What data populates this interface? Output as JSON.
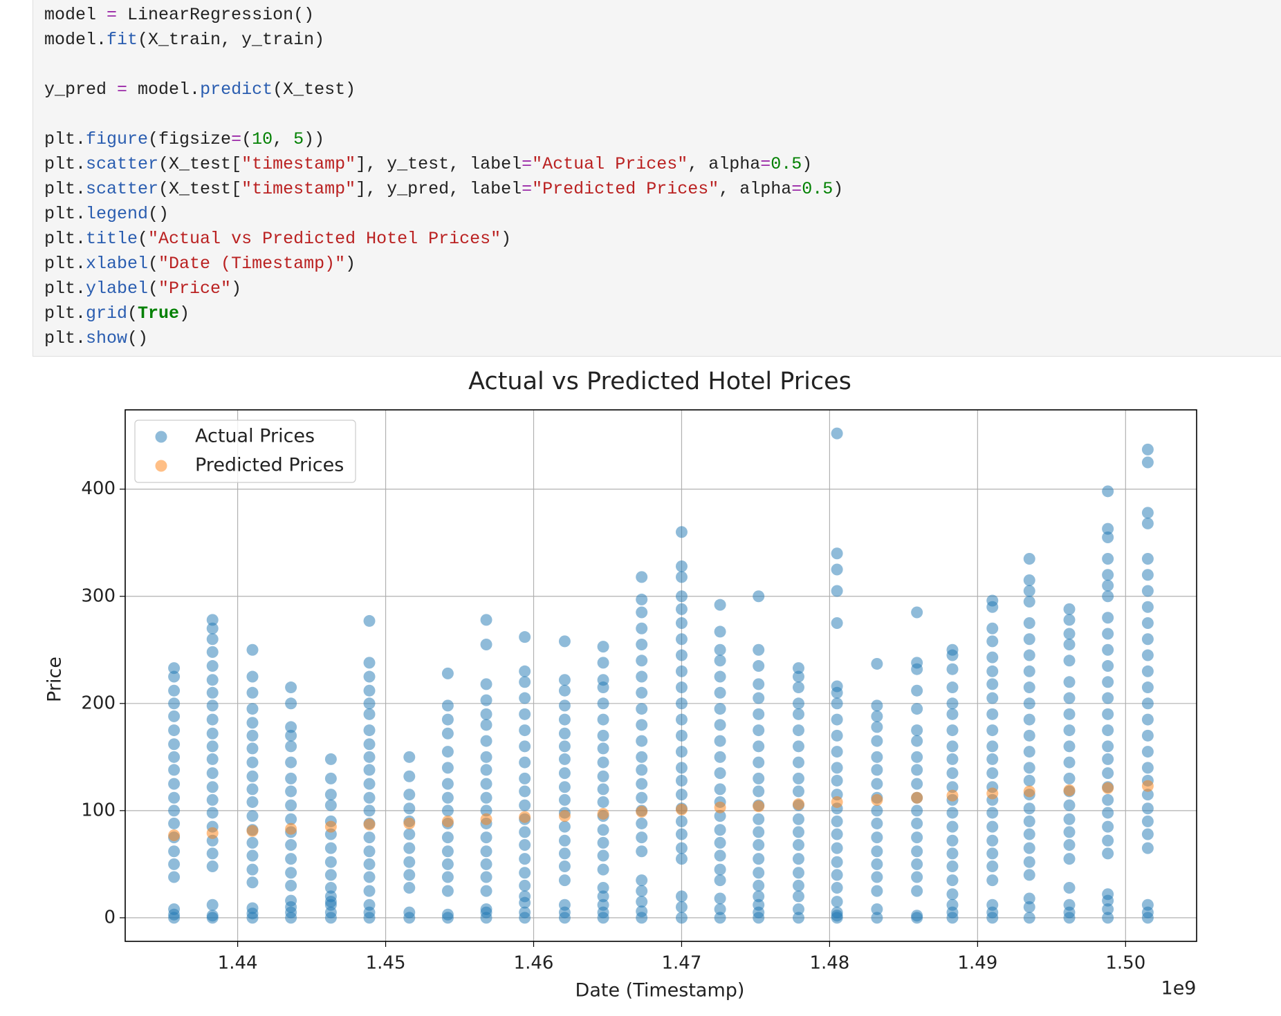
{
  "code": {
    "lines": [
      [
        "model ",
        "=",
        " LinearRegression()"
      ],
      [
        "model.",
        "fit",
        "(X_train, y_train)"
      ],
      [],
      [
        "y_pred ",
        "=",
        " model.",
        "predict",
        "(X_test)"
      ],
      [],
      [
        "plt.",
        "figure",
        "(figsize",
        "=",
        "(",
        "10",
        ", ",
        "5",
        "))"
      ],
      [
        "plt.",
        "scatter",
        "(X_test[",
        "\"timestamp\"",
        "], y_test, label",
        "=",
        "\"Actual Prices\"",
        ", alpha",
        "=",
        "0.5",
        ")"
      ],
      [
        "plt.",
        "scatter",
        "(X_test[",
        "\"timestamp\"",
        "], y_pred, label",
        "=",
        "\"Predicted Prices\"",
        ", alpha",
        "=",
        "0.5",
        ")"
      ],
      [
        "plt.",
        "legend",
        "()"
      ],
      [
        "plt.",
        "title",
        "(",
        "\"Actual vs Predicted Hotel Prices\"",
        ")"
      ],
      [
        "plt.",
        "xlabel",
        "(",
        "\"Date (Timestamp)\"",
        ")"
      ],
      [
        "plt.",
        "ylabel",
        "(",
        "\"Price\"",
        ")"
      ],
      [
        "plt.",
        "grid",
        "(",
        "True",
        ")"
      ],
      [
        "plt.",
        "show",
        "()"
      ]
    ]
  },
  "chart_data": {
    "type": "scatter",
    "title": "Actual vs Predicted Hotel Prices",
    "xlabel": "Date (Timestamp)",
    "ylabel": "Price",
    "x_offset": "1e9",
    "xlim": [
      1.4324,
      1.5048
    ],
    "ylim": [
      -22,
      474
    ],
    "xticks": [
      1.44,
      1.45,
      1.46,
      1.47,
      1.48,
      1.49,
      {
        "value": 1.5,
        "label": "1.50"
      }
    ],
    "yticks": [
      0,
      100,
      200,
      300,
      400
    ],
    "grid": true,
    "legend": "upper left",
    "series": [
      {
        "name": "Actual Prices",
        "color": "#1f77b4",
        "alpha": 0.5,
        "x": [
          1.4357,
          1.4383,
          1.441,
          1.4436,
          1.4463,
          1.4489,
          1.4516,
          1.4542,
          1.4568,
          1.4594,
          1.4621,
          1.4647,
          1.4673,
          1.47,
          1.4726,
          1.4752,
          1.4779,
          1.4805,
          1.4832,
          1.4859,
          1.4883,
          1.491,
          1.4935,
          1.4962,
          1.4988,
          1.5015
        ],
        "values": [
          [
            0,
            3,
            8,
            38,
            50,
            62,
            75,
            88,
            100,
            112,
            125,
            138,
            150,
            162,
            175,
            188,
            200,
            212,
            225,
            233
          ],
          [
            0,
            2,
            12,
            48,
            60,
            72,
            85,
            98,
            110,
            122,
            135,
            148,
            160,
            172,
            185,
            198,
            210,
            222,
            235,
            248,
            260,
            270,
            278
          ],
          [
            0,
            4,
            9,
            33,
            45,
            58,
            70,
            82,
            95,
            108,
            120,
            132,
            145,
            158,
            170,
            182,
            195,
            210,
            225,
            250
          ],
          [
            0,
            5,
            10,
            16,
            30,
            42,
            55,
            68,
            80,
            92,
            105,
            118,
            130,
            145,
            160,
            170,
            178,
            200,
            215
          ],
          [
            0,
            5,
            12,
            20,
            15,
            28,
            40,
            52,
            65,
            78,
            90,
            105,
            115,
            130,
            148
          ],
          [
            0,
            5,
            12,
            25,
            38,
            50,
            62,
            75,
            88,
            100,
            112,
            125,
            138,
            150,
            162,
            175,
            190,
            200,
            212,
            225,
            238,
            277
          ],
          [
            0,
            5,
            28,
            40,
            52,
            65,
            78,
            90,
            102,
            115,
            132,
            150
          ],
          [
            0,
            3,
            25,
            38,
            50,
            62,
            75,
            88,
            100,
            112,
            125,
            140,
            155,
            172,
            185,
            198,
            228
          ],
          [
            0,
            5,
            8,
            25,
            38,
            50,
            62,
            75,
            88,
            100,
            112,
            125,
            138,
            150,
            165,
            180,
            190,
            203,
            218,
            255,
            278
          ],
          [
            0,
            5,
            14,
            20,
            30,
            42,
            55,
            68,
            80,
            92,
            105,
            118,
            130,
            145,
            160,
            175,
            190,
            205,
            220,
            230,
            262
          ],
          [
            0,
            5,
            12,
            35,
            48,
            60,
            72,
            85,
            98,
            110,
            122,
            135,
            148,
            160,
            172,
            185,
            198,
            212,
            222,
            258
          ],
          [
            0,
            5,
            12,
            20,
            28,
            45,
            58,
            70,
            82,
            95,
            108,
            120,
            132,
            145,
            158,
            170,
            185,
            200,
            215,
            222,
            238,
            253
          ],
          [
            0,
            6,
            15,
            25,
            35,
            62,
            75,
            88,
            100,
            112,
            125,
            138,
            150,
            165,
            180,
            195,
            210,
            225,
            240,
            255,
            270,
            285,
            297,
            318
          ],
          [
            0,
            10,
            20,
            55,
            65,
            78,
            90,
            102,
            115,
            128,
            140,
            155,
            170,
            185,
            200,
            215,
            230,
            245,
            260,
            275,
            288,
            300,
            318,
            328,
            360
          ],
          [
            0,
            8,
            18,
            35,
            45,
            58,
            70,
            82,
            95,
            108,
            120,
            135,
            150,
            165,
            180,
            195,
            210,
            225,
            240,
            250,
            267,
            292
          ],
          [
            0,
            5,
            12,
            20,
            30,
            42,
            55,
            68,
            80,
            92,
            105,
            118,
            130,
            145,
            160,
            175,
            190,
            205,
            218,
            235,
            250,
            300
          ],
          [
            0,
            8,
            20,
            30,
            42,
            55,
            68,
            80,
            92,
            105,
            118,
            130,
            145,
            160,
            175,
            190,
            200,
            215,
            225,
            233
          ],
          [
            0,
            2,
            5,
            15,
            28,
            40,
            52,
            65,
            78,
            90,
            102,
            115,
            128,
            140,
            155,
            170,
            185,
            200,
            210,
            216,
            275,
            305,
            325,
            340,
            452
          ],
          [
            0,
            8,
            25,
            38,
            50,
            62,
            75,
            88,
            100,
            112,
            125,
            138,
            150,
            165,
            178,
            188,
            198,
            237
          ],
          [
            0,
            2,
            25,
            38,
            50,
            62,
            75,
            88,
            100,
            112,
            125,
            138,
            150,
            165,
            175,
            195,
            212,
            232,
            238,
            285
          ],
          [
            0,
            5,
            12,
            22,
            35,
            48,
            60,
            72,
            85,
            98,
            110,
            122,
            135,
            148,
            160,
            175,
            190,
            200,
            215,
            232,
            245,
            250
          ],
          [
            0,
            5,
            12,
            35,
            48,
            60,
            72,
            85,
            98,
            110,
            122,
            135,
            148,
            160,
            175,
            190,
            205,
            218,
            230,
            243,
            258,
            270,
            290,
            296
          ],
          [
            0,
            10,
            18,
            40,
            52,
            65,
            78,
            90,
            102,
            115,
            128,
            140,
            155,
            170,
            185,
            200,
            215,
            230,
            245,
            260,
            275,
            295,
            305,
            315,
            335
          ],
          [
            0,
            5,
            12,
            28,
            55,
            68,
            80,
            92,
            105,
            118,
            130,
            145,
            160,
            175,
            190,
            205,
            220,
            240,
            255,
            265,
            278,
            288
          ],
          [
            0,
            8,
            16,
            22,
            60,
            72,
            85,
            98,
            110,
            122,
            135,
            148,
            160,
            175,
            190,
            205,
            220,
            235,
            250,
            265,
            280,
            300,
            310,
            320,
            335,
            355,
            363,
            398
          ],
          [
            0,
            5,
            12,
            65,
            78,
            90,
            102,
            115,
            128,
            140,
            155,
            170,
            185,
            200,
            215,
            230,
            245,
            260,
            275,
            290,
            305,
            320,
            335,
            368,
            378,
            425,
            437
          ]
        ]
      },
      {
        "name": "Predicted Prices",
        "color": "#ff7f0e",
        "alpha": 0.5,
        "x": [
          1.4357,
          1.4383,
          1.441,
          1.4436,
          1.4463,
          1.4489,
          1.4516,
          1.4542,
          1.4568,
          1.4594,
          1.4621,
          1.4647,
          1.4673,
          1.47,
          1.4726,
          1.4752,
          1.4779,
          1.4805,
          1.4832,
          1.4859,
          1.4883,
          1.491,
          1.4935,
          1.4962,
          1.4988,
          1.5015
        ],
        "values": [
          77,
          79,
          81,
          83,
          85,
          87,
          88,
          90,
          92,
          94,
          95,
          97,
          99,
          101,
          103,
          104,
          106,
          108,
          110,
          112,
          114,
          116,
          118,
          119,
          121,
          123
        ]
      }
    ]
  }
}
